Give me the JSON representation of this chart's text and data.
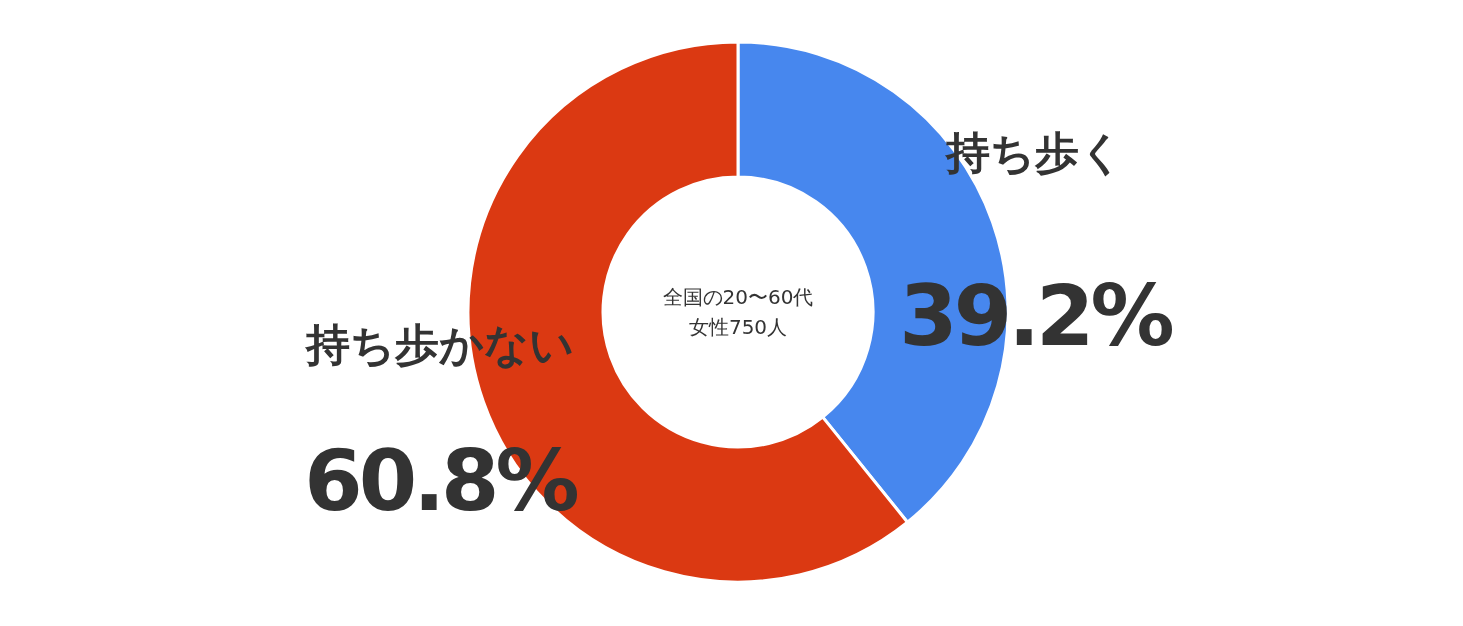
{
  "chart_data": {
    "type": "donut",
    "categories": [
      "持ち歩く",
      "持ち歩かない"
    ],
    "values": [
      39.2,
      60.8
    ],
    "colors": [
      "#4787ee",
      "#db3912"
    ],
    "value_labels": [
      "39.2%",
      "60.8%"
    ],
    "annotations": [
      "全国の20〜60代",
      "女性750人"
    ]
  }
}
